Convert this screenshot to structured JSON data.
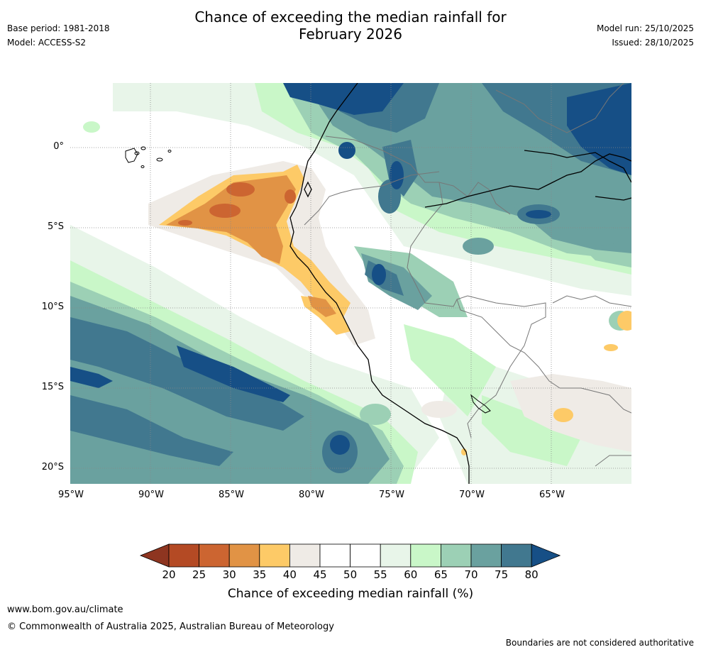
{
  "title": {
    "line1": "Chance of exceeding the median rainfall for",
    "line2": "February 2026"
  },
  "meta": {
    "base_period": "Base period: 1981-2018",
    "model": "Model: ACCESS-S2",
    "model_run": "Model run: 25/10/2025",
    "issued": "Issued: 28/10/2025"
  },
  "map": {
    "lat_labels": [
      "0°",
      "5°S",
      "10°S",
      "15°S",
      "20°S"
    ],
    "lon_labels": [
      "95°W",
      "90°W",
      "85°W",
      "80°W",
      "75°W",
      "70°W",
      "65°W"
    ]
  },
  "colorbar": {
    "ticks": [
      "20",
      "25",
      "30",
      "35",
      "40",
      "45",
      "50",
      "55",
      "60",
      "65",
      "70",
      "75",
      "80"
    ],
    "colors": [
      "#8e3520",
      "#b44a24",
      "#cc6531",
      "#e19345",
      "#fdca67",
      "#efebe6",
      "#ffffff",
      "#ffffff",
      "#e8f5e9",
      "#c9f7c8",
      "#9cd0b5",
      "#6aa19f",
      "#41788f",
      "#164f86"
    ],
    "title": "Chance of exceeding median rainfall (%)"
  },
  "footer": {
    "website": "www.bom.gov.au/climate",
    "copyright": "© Commonwealth of Australia 2025, Australian Bureau of Meteorology",
    "disclaimer": "Boundaries are not considered authoritative"
  }
}
